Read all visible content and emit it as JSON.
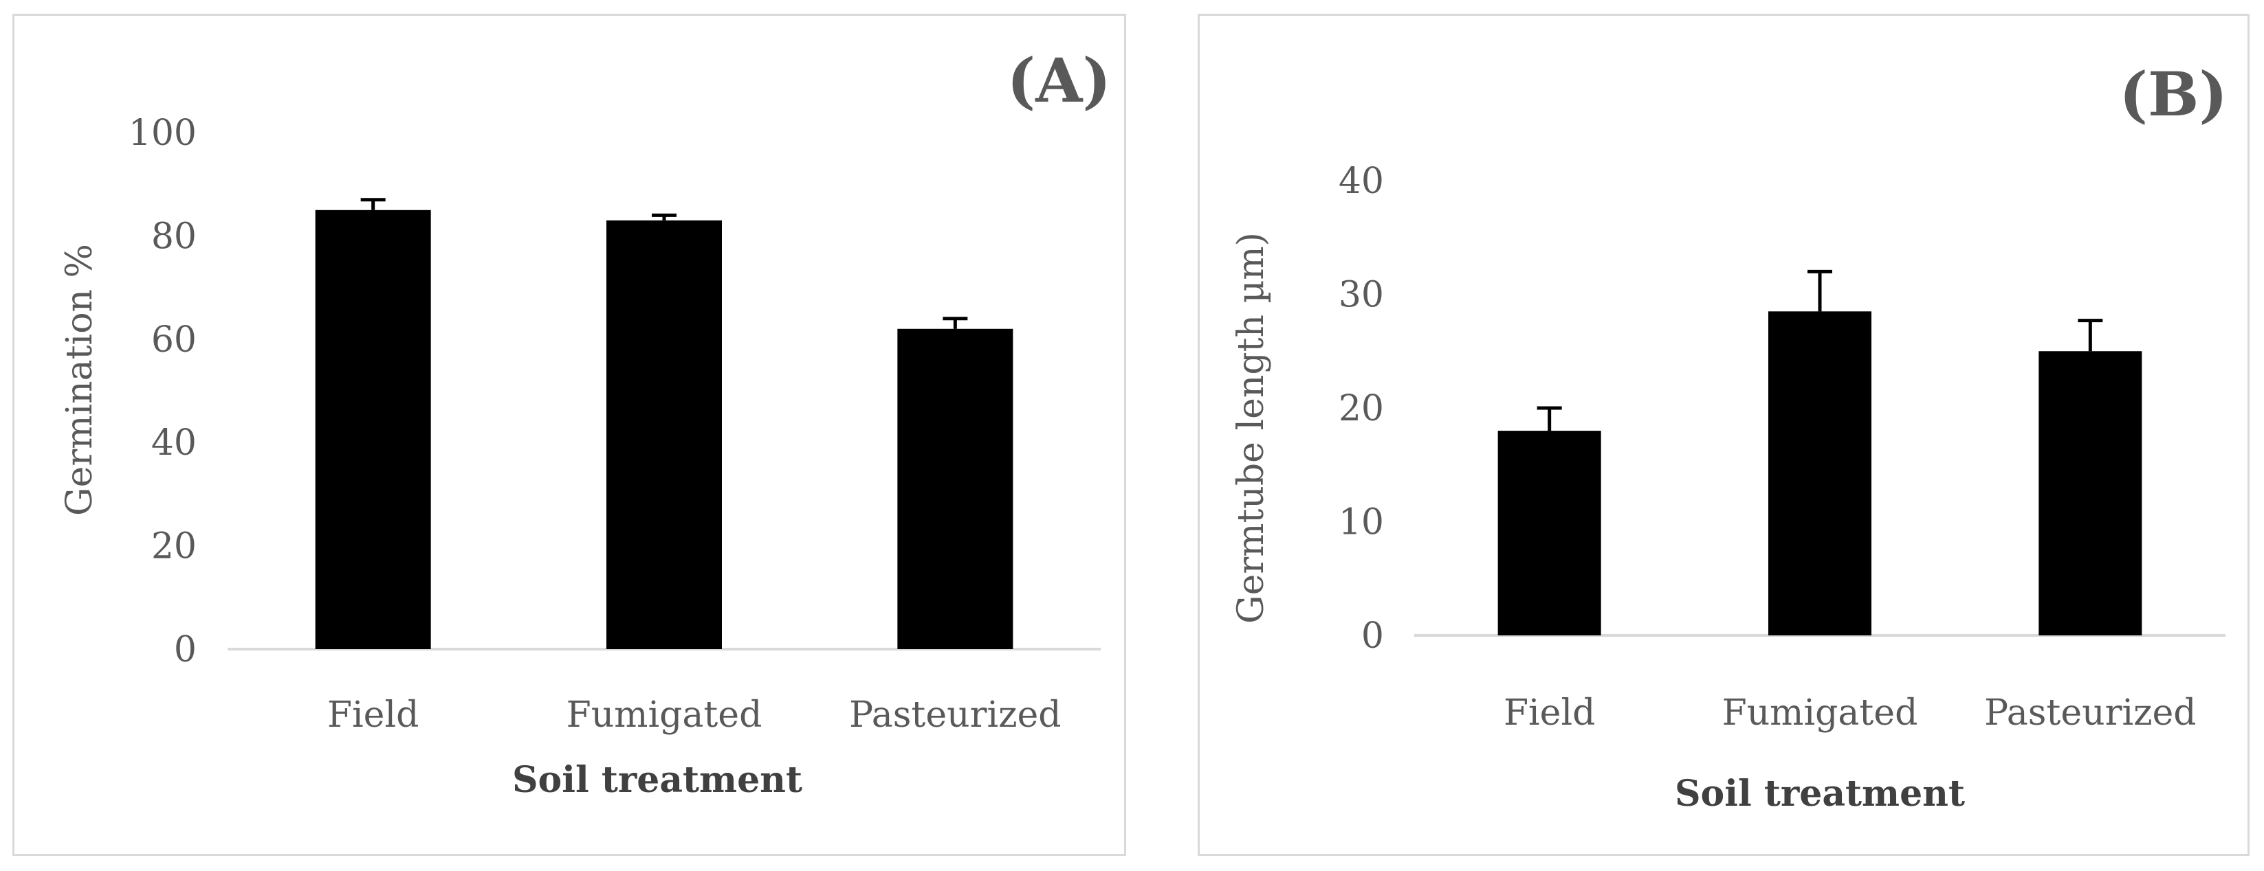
{
  "chart_data": [
    {
      "type": "bar",
      "panel_label": "(A)",
      "title": "",
      "xlabel": "Soil treatment",
      "ylabel": "Germination %",
      "categories": [
        "Field",
        "Fumigated",
        "Pasteurized"
      ],
      "values": [
        85,
        83,
        62
      ],
      "errors": [
        2,
        1,
        2
      ],
      "ylim": [
        0,
        100
      ],
      "yticks": [
        "0",
        "20",
        "40",
        "60",
        "80",
        "100"
      ],
      "bar_color": "#000000",
      "grid": false
    },
    {
      "type": "bar",
      "panel_label": "(B)",
      "title": "",
      "xlabel": "Soil treatment",
      "ylabel": "Germtube length  µm)",
      "categories": [
        "Field",
        "Fumigated",
        "Pasteurized"
      ],
      "values": [
        18,
        28.5,
        25
      ],
      "errors": [
        2,
        3.5,
        2.7
      ],
      "ylim": [
        0,
        40
      ],
      "yticks": [
        "0",
        "10",
        "20",
        "30",
        "40"
      ],
      "bar_color": "#000000",
      "grid": false
    }
  ]
}
